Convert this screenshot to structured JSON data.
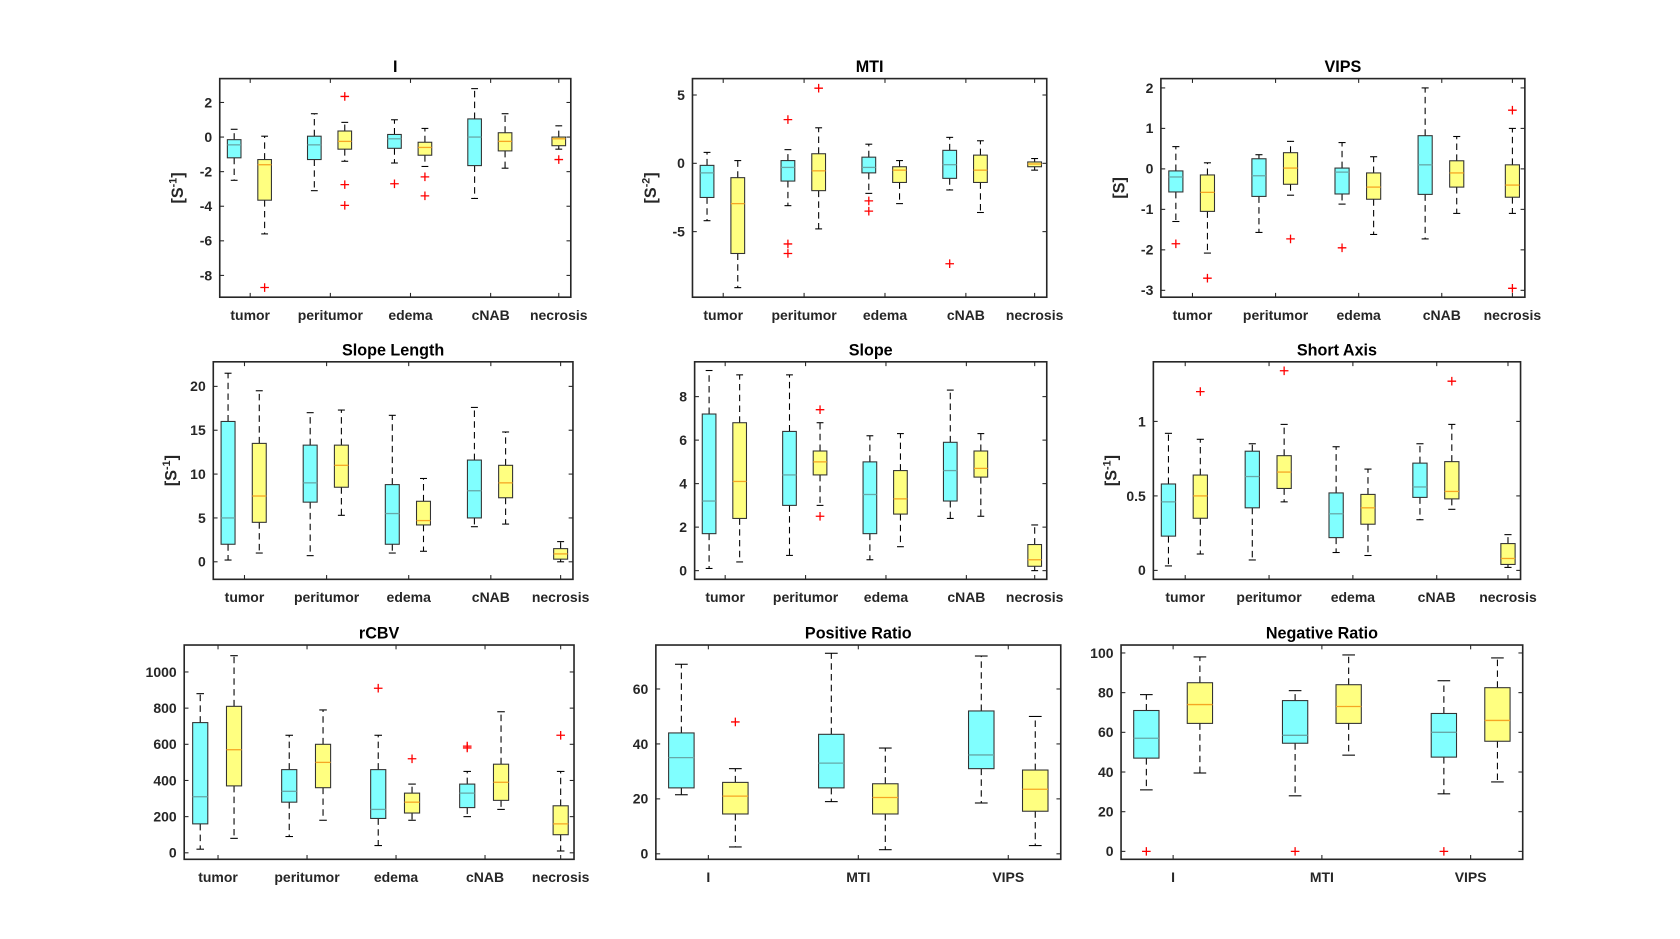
{
  "colors": {
    "group_a": "#80ffff",
    "group_b": "#ffff80",
    "median_a": "#66a8a8",
    "median_b": "#f5a623",
    "outlier": "#ff0000",
    "axis": "#262626"
  },
  "chart_data": [
    {
      "type": "box",
      "title": "I",
      "ylabel": {
        "base": "[S",
        "exp": "-1",
        "close": "]"
      },
      "categories": [
        "tumor",
        "peritumor",
        "edema",
        "cNAB",
        "necrosis"
      ],
      "ylim": [
        -9.26,
        3.38
      ],
      "yticks": [
        -8,
        -6,
        -4,
        -2,
        0,
        2
      ],
      "boxes": [
        {
          "c": 0,
          "g": "a",
          "lo": -2.5,
          "q1": -1.2,
          "med": -0.45,
          "q3": -0.15,
          "hi": 0.45,
          "out": []
        },
        {
          "c": 0,
          "g": "b",
          "lo": -5.6,
          "q1": -3.65,
          "med": -1.6,
          "q3": -1.3,
          "hi": 0.05,
          "out": [
            -8.7
          ]
        },
        {
          "c": 1,
          "g": "a",
          "lo": -3.1,
          "q1": -1.3,
          "med": -0.45,
          "q3": 0.05,
          "hi": 1.35,
          "out": []
        },
        {
          "c": 1,
          "g": "b",
          "lo": -1.4,
          "q1": -0.7,
          "med": -0.25,
          "q3": 0.35,
          "hi": 0.85,
          "out": [
            2.35,
            -2.75,
            -3.95
          ]
        },
        {
          "c": 2,
          "g": "a",
          "lo": -1.5,
          "q1": -0.65,
          "med": -0.1,
          "q3": 0.15,
          "hi": 1.0,
          "out": [
            -2.7
          ]
        },
        {
          "c": 2,
          "g": "b",
          "lo": -1.7,
          "q1": -1.05,
          "med": -0.6,
          "q3": -0.3,
          "hi": 0.5,
          "out": [
            -2.3,
            -3.4
          ]
        },
        {
          "c": 3,
          "g": "a",
          "lo": -3.55,
          "q1": -1.65,
          "med": 0,
          "q3": 1.05,
          "hi": 2.8,
          "out": []
        },
        {
          "c": 3,
          "g": "b",
          "lo": -1.8,
          "q1": -0.8,
          "med": -0.25,
          "q3": 0.25,
          "hi": 1.35,
          "out": []
        },
        {
          "c": 4,
          "g": "b",
          "lo": -0.7,
          "q1": -0.5,
          "med": -0.1,
          "q3": 0.0,
          "hi": 0.65,
          "out": [
            -1.3
          ]
        }
      ]
    },
    {
      "type": "box",
      "title": "MTI",
      "ylabel": {
        "base": "[S",
        "exp": "-2",
        "close": "]"
      },
      "categories": [
        "tumor",
        "peritumor",
        "edema",
        "cNAB",
        "necrosis"
      ],
      "ylim": [
        -9.8,
        6.2
      ],
      "yticks": [
        -5,
        0,
        5
      ],
      "boxes": [
        {
          "c": 0,
          "g": "a",
          "lo": -4.2,
          "q1": -2.5,
          "med": -0.7,
          "q3": -0.15,
          "hi": 0.8,
          "out": []
        },
        {
          "c": 0,
          "g": "b",
          "lo": -9.1,
          "q1": -6.6,
          "med": -2.95,
          "q3": -1.05,
          "hi": 0.2,
          "out": []
        },
        {
          "c": 1,
          "g": "a",
          "lo": -3.1,
          "q1": -1.3,
          "med": -0.3,
          "q3": 0.2,
          "hi": 1.0,
          "out": [
            3.2,
            -5.9,
            -6.6
          ]
        },
        {
          "c": 1,
          "g": "b",
          "lo": -4.8,
          "q1": -2.0,
          "med": -0.55,
          "q3": 0.7,
          "hi": 2.6,
          "out": [
            5.5
          ]
        },
        {
          "c": 2,
          "g": "a",
          "lo": -2.2,
          "q1": -0.7,
          "med": -0.3,
          "q3": 0.45,
          "hi": 1.4,
          "out": [
            -2.75,
            -3.5
          ]
        },
        {
          "c": 2,
          "g": "b",
          "lo": -2.95,
          "q1": -1.4,
          "med": -0.5,
          "q3": -0.25,
          "hi": 0.2,
          "out": []
        },
        {
          "c": 3,
          "g": "a",
          "lo": -1.95,
          "q1": -1.1,
          "med": -0.1,
          "q3": 0.95,
          "hi": 1.9,
          "out": [
            -7.35
          ]
        },
        {
          "c": 3,
          "g": "b",
          "lo": -3.6,
          "q1": -1.4,
          "med": -0.5,
          "q3": 0.6,
          "hi": 1.65,
          "out": []
        },
        {
          "c": 4,
          "g": "b",
          "lo": -0.5,
          "q1": -0.25,
          "med": -0.05,
          "q3": 0.1,
          "hi": 0.35,
          "out": []
        }
      ]
    },
    {
      "type": "box",
      "title": "VIPS",
      "ylabel": {
        "base": "[S",
        "exp": "",
        "close": "]"
      },
      "categories": [
        "tumor",
        "peritumor",
        "edema",
        "cNAB",
        "necrosis"
      ],
      "ylim": [
        -3.17,
        2.23
      ],
      "yticks": [
        -3,
        -2,
        -1,
        0,
        1,
        2
      ],
      "boxes": [
        {
          "c": 0,
          "g": "a",
          "lo": -1.3,
          "q1": -0.57,
          "med": -0.2,
          "q3": -0.05,
          "hi": 0.55,
          "out": [
            -1.85
          ]
        },
        {
          "c": 0,
          "g": "b",
          "lo": -2.08,
          "q1": -1.05,
          "med": -0.58,
          "q3": -0.15,
          "hi": 0.15,
          "out": [
            -2.7
          ]
        },
        {
          "c": 1,
          "g": "a",
          "lo": -1.57,
          "q1": -0.68,
          "med": -0.17,
          "q3": 0.25,
          "hi": 0.35,
          "out": []
        },
        {
          "c": 1,
          "g": "b",
          "lo": -0.65,
          "q1": -0.38,
          "med": 0.02,
          "q3": 0.4,
          "hi": 0.68,
          "out": [
            -1.73
          ]
        },
        {
          "c": 2,
          "g": "a",
          "lo": -0.87,
          "q1": -0.62,
          "med": -0.08,
          "q3": 0.02,
          "hi": 0.65,
          "out": [
            -1.95
          ]
        },
        {
          "c": 2,
          "g": "b",
          "lo": -1.62,
          "q1": -0.75,
          "med": -0.45,
          "q3": -0.1,
          "hi": 0.3,
          "out": []
        },
        {
          "c": 3,
          "g": "a",
          "lo": -1.73,
          "q1": -0.63,
          "med": 0.1,
          "q3": 0.82,
          "hi": 2.0,
          "out": []
        },
        {
          "c": 3,
          "g": "b",
          "lo": -1.1,
          "q1": -0.45,
          "med": -0.1,
          "q3": 0.2,
          "hi": 0.8,
          "out": []
        },
        {
          "c": 4,
          "g": "b",
          "lo": -1.1,
          "q1": -0.7,
          "med": -0.4,
          "q3": 0.1,
          "hi": 1.0,
          "out": [
            1.45,
            -2.95
          ]
        }
      ]
    },
    {
      "type": "box",
      "title": "Slope Length",
      "ylabel": {
        "base": "[S",
        "exp": "-1",
        "close": "]"
      },
      "categories": [
        "tumor",
        "peritumor",
        "edema",
        "cNAB",
        "necrosis"
      ],
      "ylim": [
        -2.0,
        22.8
      ],
      "yticks": [
        0,
        5,
        10,
        15,
        20
      ],
      "boxes": [
        {
          "c": 0,
          "g": "a",
          "lo": 0.2,
          "q1": 2,
          "med": 5,
          "q3": 16,
          "hi": 21.5,
          "out": []
        },
        {
          "c": 0,
          "g": "b",
          "lo": 1.0,
          "q1": 4.5,
          "med": 7.5,
          "q3": 13.5,
          "hi": 19.5,
          "out": []
        },
        {
          "c": 1,
          "g": "a",
          "lo": 0.7,
          "q1": 6.8,
          "med": 9,
          "q3": 13.3,
          "hi": 17,
          "out": []
        },
        {
          "c": 1,
          "g": "b",
          "lo": 5.3,
          "q1": 8.5,
          "med": 11,
          "q3": 13.3,
          "hi": 17.3,
          "out": []
        },
        {
          "c": 2,
          "g": "a",
          "lo": 1,
          "q1": 2,
          "med": 5.5,
          "q3": 8.8,
          "hi": 16.7,
          "out": []
        },
        {
          "c": 2,
          "g": "b",
          "lo": 1.2,
          "q1": 4.2,
          "med": 4.7,
          "q3": 6.9,
          "hi": 9.5,
          "out": []
        },
        {
          "c": 3,
          "g": "a",
          "lo": 4,
          "q1": 5,
          "med": 8.1,
          "q3": 11.6,
          "hi": 17.6,
          "out": []
        },
        {
          "c": 3,
          "g": "b",
          "lo": 4.3,
          "q1": 7.3,
          "med": 9,
          "q3": 11,
          "hi": 14.8,
          "out": []
        },
        {
          "c": 4,
          "g": "b",
          "lo": 0,
          "q1": 0.3,
          "med": 0.9,
          "q3": 1.5,
          "hi": 2.3,
          "out": []
        }
      ]
    },
    {
      "type": "box",
      "title": "Slope",
      "ylabel": null,
      "categories": [
        "tumor",
        "peritumor",
        "edema",
        "cNAB",
        "necrosis"
      ],
      "ylim": [
        -0.4,
        9.6
      ],
      "yticks": [
        0,
        2,
        4,
        6,
        8
      ],
      "boxes": [
        {
          "c": 0,
          "g": "a",
          "lo": 0.1,
          "q1": 1.7,
          "med": 3.2,
          "q3": 7.2,
          "hi": 9.2,
          "out": []
        },
        {
          "c": 0,
          "g": "b",
          "lo": 0.4,
          "q1": 2.4,
          "med": 4.1,
          "q3": 6.8,
          "hi": 9.0,
          "out": []
        },
        {
          "c": 1,
          "g": "a",
          "lo": 0.7,
          "q1": 3.0,
          "med": 4.4,
          "q3": 6.4,
          "hi": 9.0,
          "out": []
        },
        {
          "c": 1,
          "g": "b",
          "lo": 3.0,
          "q1": 4.4,
          "med": 5.0,
          "q3": 5.5,
          "hi": 6.8,
          "out": [
            7.4,
            2.5
          ]
        },
        {
          "c": 2,
          "g": "a",
          "lo": 0.5,
          "q1": 1.7,
          "med": 3.5,
          "q3": 5.0,
          "hi": 6.2,
          "out": []
        },
        {
          "c": 2,
          "g": "b",
          "lo": 1.1,
          "q1": 2.6,
          "med": 3.3,
          "q3": 4.6,
          "hi": 6.3,
          "out": []
        },
        {
          "c": 3,
          "g": "a",
          "lo": 2.4,
          "q1": 3.2,
          "med": 4.6,
          "q3": 5.9,
          "hi": 8.3,
          "out": []
        },
        {
          "c": 3,
          "g": "b",
          "lo": 2.5,
          "q1": 4.3,
          "med": 4.7,
          "q3": 5.5,
          "hi": 6.3,
          "out": []
        },
        {
          "c": 4,
          "g": "b",
          "lo": 0,
          "q1": 0.2,
          "med": 0.5,
          "q3": 1.2,
          "hi": 2.1,
          "out": []
        }
      ]
    },
    {
      "type": "box",
      "title": "Short Axis",
      "ylabel": {
        "base": "[S",
        "exp": "-1",
        "close": "]"
      },
      "categories": [
        "tumor",
        "peritumor",
        "edema",
        "cNAB",
        "necrosis"
      ],
      "ylim": [
        -0.06,
        1.4
      ],
      "yticks": [
        0,
        0.5,
        1
      ],
      "boxes": [
        {
          "c": 0,
          "g": "a",
          "lo": 0.03,
          "q1": 0.23,
          "med": 0.46,
          "q3": 0.58,
          "hi": 0.92,
          "out": []
        },
        {
          "c": 0,
          "g": "b",
          "lo": 0.11,
          "q1": 0.35,
          "med": 0.5,
          "q3": 0.64,
          "hi": 0.88,
          "out": [
            1.2
          ]
        },
        {
          "c": 1,
          "g": "a",
          "lo": 0.07,
          "q1": 0.42,
          "med": 0.63,
          "q3": 0.8,
          "hi": 0.85,
          "out": []
        },
        {
          "c": 1,
          "g": "b",
          "lo": 0.46,
          "q1": 0.55,
          "med": 0.66,
          "q3": 0.77,
          "hi": 0.98,
          "out": [
            1.34
          ]
        },
        {
          "c": 2,
          "g": "a",
          "lo": 0.12,
          "q1": 0.22,
          "med": 0.38,
          "q3": 0.52,
          "hi": 0.83,
          "out": []
        },
        {
          "c": 2,
          "g": "b",
          "lo": 0.1,
          "q1": 0.31,
          "med": 0.42,
          "q3": 0.51,
          "hi": 0.68,
          "out": []
        },
        {
          "c": 3,
          "g": "a",
          "lo": 0.34,
          "q1": 0.49,
          "med": 0.56,
          "q3": 0.72,
          "hi": 0.85,
          "out": []
        },
        {
          "c": 3,
          "g": "b",
          "lo": 0.41,
          "q1": 0.48,
          "med": 0.53,
          "q3": 0.73,
          "hi": 0.98,
          "out": [
            1.27
          ]
        },
        {
          "c": 4,
          "g": "b",
          "lo": 0.02,
          "q1": 0.04,
          "med": 0.08,
          "q3": 0.18,
          "hi": 0.24,
          "out": []
        }
      ]
    },
    {
      "type": "box",
      "title": "rCBV",
      "ylabel": null,
      "categories": [
        "tumor",
        "peritumor",
        "edema",
        "cNAB",
        "necrosis"
      ],
      "ylim": [
        -36,
        1149
      ],
      "yticks": [
        0,
        200,
        400,
        600,
        800,
        1000
      ],
      "boxes": [
        {
          "c": 0,
          "g": "a",
          "lo": 20,
          "q1": 160,
          "med": 310,
          "q3": 720,
          "hi": 880,
          "out": []
        },
        {
          "c": 0,
          "g": "b",
          "lo": 80,
          "q1": 370,
          "med": 570,
          "q3": 810,
          "hi": 1090,
          "out": []
        },
        {
          "c": 1,
          "g": "a",
          "lo": 90,
          "q1": 280,
          "med": 340,
          "q3": 460,
          "hi": 650,
          "out": []
        },
        {
          "c": 1,
          "g": "b",
          "lo": 180,
          "q1": 360,
          "med": 500,
          "q3": 600,
          "hi": 790,
          "out": []
        },
        {
          "c": 2,
          "g": "a",
          "lo": 40,
          "q1": 190,
          "med": 240,
          "q3": 460,
          "hi": 650,
          "out": [
            910
          ]
        },
        {
          "c": 2,
          "g": "b",
          "lo": 180,
          "q1": 220,
          "med": 280,
          "q3": 330,
          "hi": 380,
          "out": [
            520
          ]
        },
        {
          "c": 3,
          "g": "a",
          "lo": 200,
          "q1": 250,
          "med": 330,
          "q3": 380,
          "hi": 450,
          "out": [
            590,
            580
          ]
        },
        {
          "c": 3,
          "g": "b",
          "lo": 240,
          "q1": 290,
          "med": 390,
          "q3": 490,
          "hi": 780,
          "out": []
        },
        {
          "c": 4,
          "g": "b",
          "lo": 10,
          "q1": 100,
          "med": 160,
          "q3": 260,
          "hi": 450,
          "out": [
            650
          ]
        }
      ]
    },
    {
      "type": "box",
      "title": "Positive Ratio",
      "ylabel": null,
      "categories": [
        "I",
        "MTI",
        "VIPS"
      ],
      "ylim": [
        -2,
        76
      ],
      "yticks": [
        0,
        20,
        40,
        60
      ],
      "boxes": [
        {
          "c": 0,
          "g": "a",
          "lo": 21.5,
          "q1": 24,
          "med": 35,
          "q3": 44,
          "hi": 69,
          "out": []
        },
        {
          "c": 0,
          "g": "b",
          "lo": 2.5,
          "q1": 14.5,
          "med": 21,
          "q3": 26,
          "hi": 31,
          "out": [
            48
          ]
        },
        {
          "c": 1,
          "g": "a",
          "lo": 19,
          "q1": 24,
          "med": 33,
          "q3": 43.5,
          "hi": 73,
          "out": []
        },
        {
          "c": 1,
          "g": "b",
          "lo": 1.5,
          "q1": 14.5,
          "med": 20.5,
          "q3": 25.5,
          "hi": 38.5,
          "out": []
        },
        {
          "c": 2,
          "g": "a",
          "lo": 18.5,
          "q1": 31,
          "med": 36,
          "q3": 52,
          "hi": 72,
          "out": []
        },
        {
          "c": 2,
          "g": "b",
          "lo": 3,
          "q1": 15.5,
          "med": 23.5,
          "q3": 30.5,
          "hi": 50,
          "out": []
        }
      ]
    },
    {
      "type": "box",
      "title": "Negative Ratio",
      "ylabel": null,
      "categories": [
        "I",
        "MTI",
        "VIPS"
      ],
      "ylim": [
        -4,
        104
      ],
      "yticks": [
        0,
        20,
        40,
        60,
        80,
        100
      ],
      "boxes": [
        {
          "c": 0,
          "g": "a",
          "lo": 31,
          "q1": 47,
          "med": 57,
          "q3": 71,
          "hi": 79,
          "out": [
            0
          ]
        },
        {
          "c": 0,
          "g": "b",
          "lo": 39.5,
          "q1": 64.5,
          "med": 74,
          "q3": 85,
          "hi": 98,
          "out": []
        },
        {
          "c": 1,
          "g": "a",
          "lo": 28,
          "q1": 54.5,
          "med": 58.5,
          "q3": 76,
          "hi": 81,
          "out": [
            0
          ]
        },
        {
          "c": 1,
          "g": "b",
          "lo": 48.5,
          "q1": 64.5,
          "med": 73,
          "q3": 84,
          "hi": 99,
          "out": []
        },
        {
          "c": 2,
          "g": "a",
          "lo": 29,
          "q1": 47.5,
          "med": 60,
          "q3": 69.5,
          "hi": 86,
          "out": [
            0
          ]
        },
        {
          "c": 2,
          "g": "b",
          "lo": 35,
          "q1": 55.5,
          "med": 66,
          "q3": 82.5,
          "hi": 97.5,
          "out": []
        }
      ]
    }
  ]
}
